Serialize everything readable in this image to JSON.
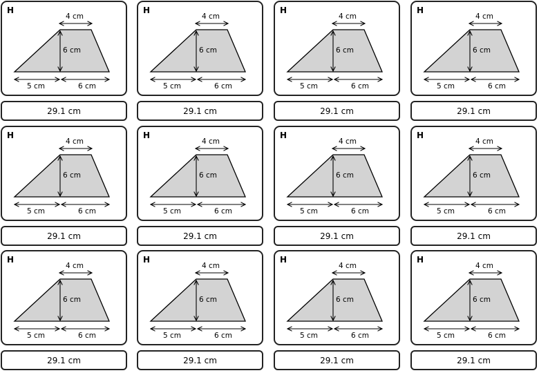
{
  "cards": [
    {
      "letter": "H",
      "top": "4 cm",
      "height": "6 cm",
      "left": "5 cm",
      "right": "6 cm",
      "answer": "29.1 cm"
    },
    {
      "letter": "H",
      "top": "4 cm",
      "height": "6 cm",
      "left": "5 cm",
      "right": "6 cm",
      "answer": "29.1 cm"
    },
    {
      "letter": "H",
      "top": "4 cm",
      "height": "6 cm",
      "left": "5 cm",
      "right": "6 cm",
      "answer": "29.1 cm"
    },
    {
      "letter": "H",
      "top": "4 cm",
      "height": "6 cm",
      "left": "5 cm",
      "right": "6 cm",
      "answer": "29.1 cm"
    },
    {
      "letter": "H",
      "top": "4 cm",
      "height": "6 cm",
      "left": "5 cm",
      "right": "6 cm",
      "answer": "29.1 cm"
    },
    {
      "letter": "H",
      "top": "4 cm",
      "height": "6 cm",
      "left": "5 cm",
      "right": "6 cm",
      "answer": "29.1 cm"
    },
    {
      "letter": "H",
      "top": "4 cm",
      "height": "6 cm",
      "left": "5 cm",
      "right": "6 cm",
      "answer": "29.1 cm"
    },
    {
      "letter": "H",
      "top": "4 cm",
      "height": "6 cm",
      "left": "5 cm",
      "right": "6 cm",
      "answer": "29.1 cm"
    },
    {
      "letter": "H",
      "top": "4 cm",
      "height": "6 cm",
      "left": "5 cm",
      "right": "6 cm",
      "answer": "29.1 cm"
    },
    {
      "letter": "H",
      "top": "4 cm",
      "height": "6 cm",
      "left": "5 cm",
      "right": "6 cm",
      "answer": "29.1 cm"
    },
    {
      "letter": "H",
      "top": "4 cm",
      "height": "6 cm",
      "left": "5 cm",
      "right": "6 cm",
      "answer": "29.1 cm"
    },
    {
      "letter": "H",
      "top": "4 cm",
      "height": "6 cm",
      "left": "5 cm",
      "right": "6 cm",
      "answer": "29.1 cm"
    }
  ],
  "colors": {
    "shape_fill": "#d3d3d3",
    "stroke": "#000000",
    "border": "#222222"
  }
}
